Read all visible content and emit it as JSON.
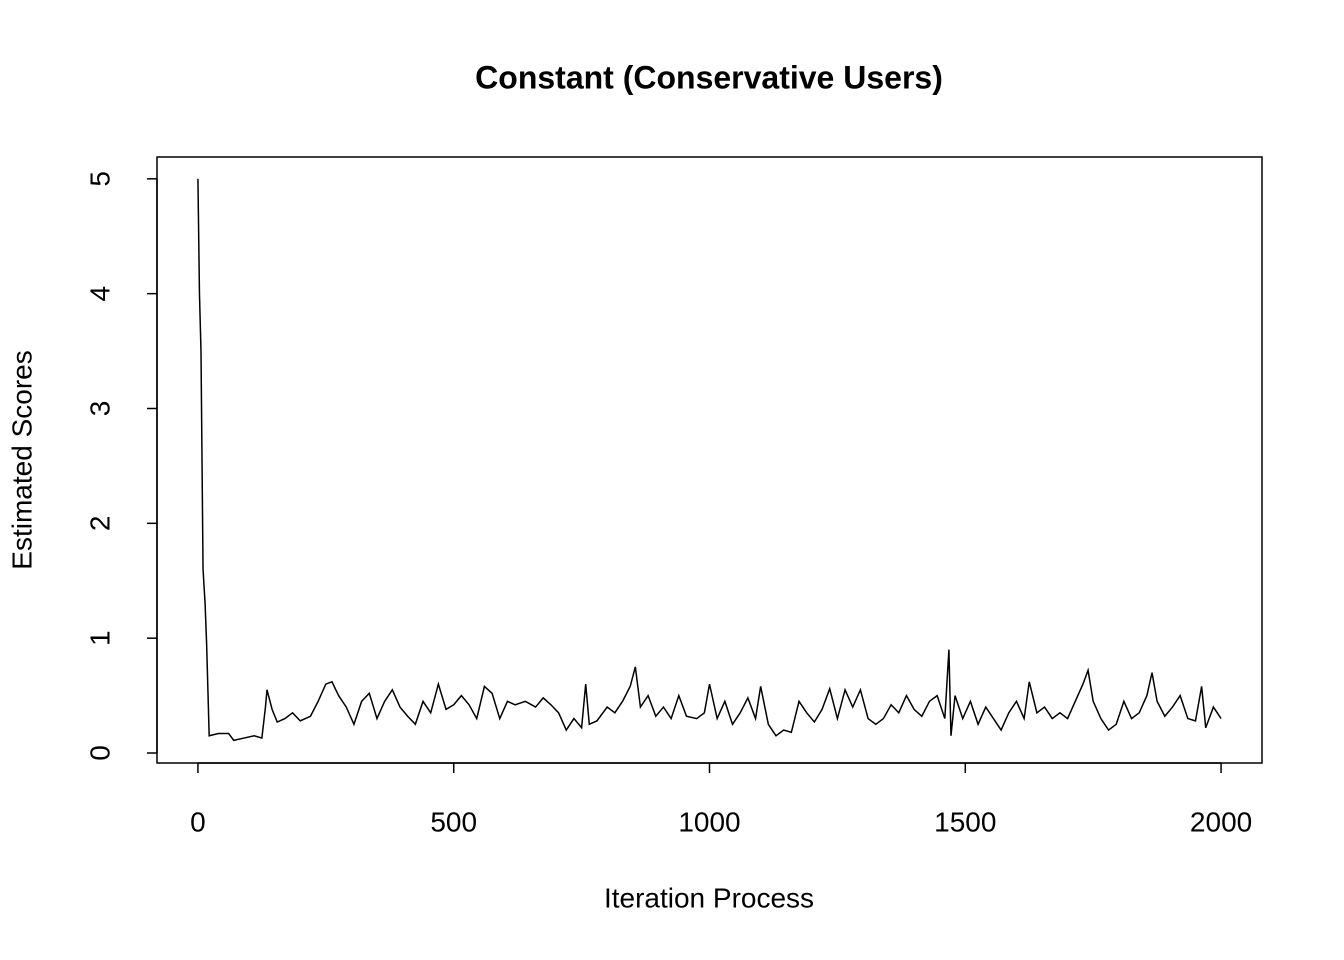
{
  "chart_data": {
    "type": "line",
    "title": "Constant (Conservative Users)",
    "xlabel": "Iteration Process",
    "ylabel": "Estimated Scores",
    "color": "#000000",
    "x": [
      0,
      3,
      6,
      10,
      14,
      17,
      22,
      40,
      60,
      70,
      90,
      110,
      125,
      132,
      135,
      145,
      155,
      170,
      185,
      200,
      220,
      235,
      250,
      262,
      275,
      290,
      305,
      320,
      335,
      350,
      365,
      380,
      395,
      410,
      425,
      440,
      455,
      470,
      485,
      500,
      515,
      530,
      545,
      560,
      575,
      590,
      605,
      620,
      640,
      660,
      675,
      690,
      705,
      720,
      735,
      750,
      758,
      765,
      780,
      800,
      815,
      830,
      845,
      855,
      865,
      880,
      895,
      910,
      925,
      940,
      955,
      975,
      990,
      1000,
      1015,
      1030,
      1045,
      1060,
      1075,
      1090,
      1100,
      1115,
      1130,
      1145,
      1160,
      1175,
      1190,
      1205,
      1220,
      1235,
      1250,
      1265,
      1280,
      1295,
      1310,
      1325,
      1340,
      1355,
      1370,
      1385,
      1400,
      1415,
      1430,
      1445,
      1460,
      1468,
      1472,
      1480,
      1495,
      1510,
      1525,
      1540,
      1555,
      1570,
      1585,
      1600,
      1615,
      1625,
      1640,
      1655,
      1670,
      1685,
      1700,
      1715,
      1730,
      1740,
      1750,
      1765,
      1780,
      1795,
      1810,
      1825,
      1840,
      1855,
      1865,
      1875,
      1890,
      1905,
      1920,
      1935,
      1950,
      1962,
      1970,
      1985,
      2000
    ],
    "values": [
      5,
      4,
      3.5,
      1.6,
      1.3,
      0.95,
      0.15,
      0.17,
      0.17,
      0.11,
      0.13,
      0.15,
      0.13,
      0.4,
      0.55,
      0.38,
      0.27,
      0.3,
      0.35,
      0.28,
      0.32,
      0.45,
      0.6,
      0.62,
      0.5,
      0.4,
      0.25,
      0.45,
      0.52,
      0.3,
      0.45,
      0.55,
      0.4,
      0.32,
      0.25,
      0.45,
      0.35,
      0.6,
      0.38,
      0.42,
      0.5,
      0.42,
      0.3,
      0.58,
      0.52,
      0.3,
      0.45,
      0.42,
      0.45,
      0.4,
      0.48,
      0.42,
      0.35,
      0.2,
      0.3,
      0.22,
      0.6,
      0.25,
      0.28,
      0.4,
      0.35,
      0.45,
      0.58,
      0.75,
      0.4,
      0.5,
      0.32,
      0.4,
      0.3,
      0.5,
      0.32,
      0.3,
      0.35,
      0.6,
      0.3,
      0.45,
      0.25,
      0.35,
      0.48,
      0.3,
      0.58,
      0.25,
      0.15,
      0.2,
      0.18,
      0.45,
      0.35,
      0.27,
      0.38,
      0.56,
      0.3,
      0.55,
      0.4,
      0.55,
      0.3,
      0.25,
      0.3,
      0.42,
      0.35,
      0.5,
      0.38,
      0.32,
      0.45,
      0.5,
      0.3,
      0.9,
      0.15,
      0.5,
      0.3,
      0.45,
      0.25,
      0.4,
      0.3,
      0.2,
      0.35,
      0.45,
      0.3,
      0.62,
      0.35,
      0.4,
      0.3,
      0.35,
      0.3,
      0.45,
      0.6,
      0.72,
      0.45,
      0.3,
      0.2,
      0.25,
      0.45,
      0.3,
      0.35,
      0.5,
      0.7,
      0.45,
      0.32,
      0.4,
      0.5,
      0.3,
      0.28,
      0.58,
      0.22,
      0.4,
      0.3
    ],
    "xlim": [
      -80,
      2080
    ],
    "ylim": [
      -0.087,
      5.19
    ],
    "xticks": [
      0,
      500,
      1000,
      1500,
      2000
    ],
    "yticks": [
      0,
      1,
      2,
      3,
      4,
      5
    ]
  }
}
